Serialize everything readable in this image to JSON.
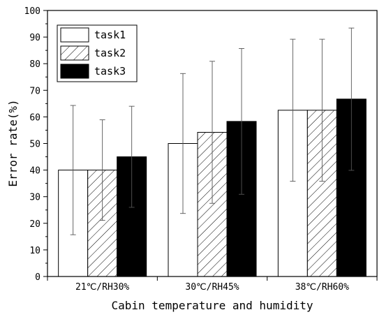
{
  "chart_data": {
    "type": "bar",
    "categories": [
      "21℃/RH30%",
      "30℃/RH45%",
      "38℃/RH60%"
    ],
    "series": [
      {
        "name": "task1",
        "values": [
          40,
          50,
          62.5
        ],
        "err_low": [
          15.7,
          23.7,
          35.8
        ],
        "err_high": [
          64.3,
          76.3,
          89.2
        ],
        "fill": "#ffffff",
        "pattern": "none"
      },
      {
        "name": "task2",
        "values": [
          40,
          54.2,
          62.5
        ],
        "err_low": [
          21.1,
          27.5,
          35.8
        ],
        "err_high": [
          58.9,
          80.9,
          89.2
        ],
        "fill": "#ffffff",
        "pattern": "hatch"
      },
      {
        "name": "task3",
        "values": [
          45,
          58.3,
          66.7
        ],
        "err_low": [
          26.0,
          30.9,
          39.9
        ],
        "err_high": [
          64.0,
          85.7,
          93.4
        ],
        "fill": "#000000",
        "pattern": "none"
      }
    ],
    "xlabel": "Cabin temperature and humidity",
    "ylabel": "Error rate(%)",
    "ylim": [
      0,
      100
    ],
    "yticks": [
      0,
      10,
      20,
      30,
      40,
      50,
      60,
      70,
      80,
      90,
      100
    ],
    "legend_placement": "top-left",
    "grid": false
  }
}
